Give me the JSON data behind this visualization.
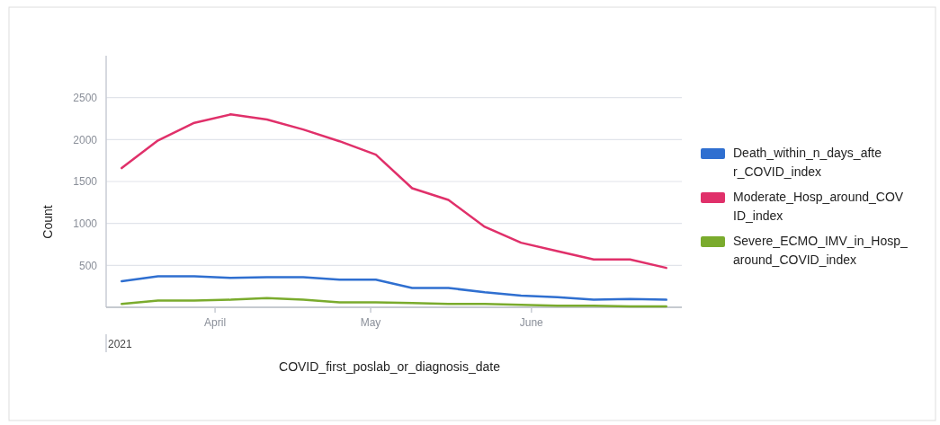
{
  "chart_data": {
    "type": "line",
    "xlabel": "COVID_first_poslab_or_diagnosis_date",
    "ylabel": "Count",
    "x": [
      "2021-03-14",
      "2021-03-21",
      "2021-03-28",
      "2021-04-04",
      "2021-04-11",
      "2021-04-18",
      "2021-04-25",
      "2021-05-02",
      "2021-05-09",
      "2021-05-16",
      "2021-05-23",
      "2021-05-30",
      "2021-06-06",
      "2021-06-13",
      "2021-06-20",
      "2021-06-27"
    ],
    "series": [
      {
        "name": "Death_within_n_days_after_COVID_index",
        "color": "#2f6fd0",
        "values": [
          310,
          370,
          370,
          350,
          360,
          360,
          330,
          330,
          230,
          230,
          180,
          140,
          120,
          90,
          100,
          90
        ]
      },
      {
        "name": "Moderate_Hosp_around_COVID_index",
        "color": "#e0306a",
        "values": [
          1660,
          1990,
          2200,
          2300,
          2240,
          2120,
          1980,
          1820,
          1420,
          1280,
          960,
          770,
          670,
          570,
          570,
          470
        ]
      },
      {
        "name": "Severe_ECMO_IMV_in_Hosp_around_COVID_index",
        "color": "#7aab2d",
        "values": [
          40,
          80,
          80,
          90,
          110,
          90,
          60,
          60,
          50,
          40,
          40,
          30,
          20,
          20,
          10,
          10
        ]
      }
    ],
    "xlim": [
      "2021-03-11",
      "2021-06-30"
    ],
    "annotations": [
      "2021"
    ],
    "xticks": [
      {
        "value": "2021-04-01",
        "label": "April"
      },
      {
        "value": "2021-05-01",
        "label": "May"
      },
      {
        "value": "2021-06-01",
        "label": "June"
      }
    ],
    "ylim": [
      0,
      3000
    ],
    "yticks": [
      {
        "value": 0,
        "label": null
      },
      500,
      1000,
      1500,
      2000,
      2500
    ],
    "grid": "y",
    "legend": "right",
    "marker": "none",
    "line_style": "solid"
  }
}
